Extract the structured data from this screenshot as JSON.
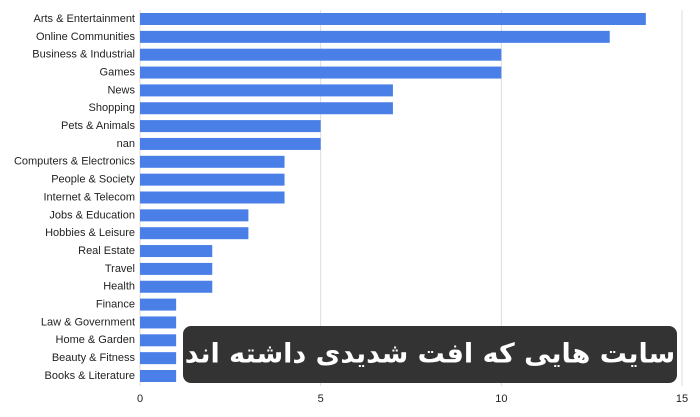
{
  "chart_data": {
    "type": "bar",
    "orientation": "horizontal",
    "categories": [
      "Arts & Entertainment",
      "Online Communities",
      "Business & Industrial",
      "Games",
      "News",
      "Shopping",
      "Pets & Animals",
      "nan",
      "Computers & Electronics",
      "People & Society",
      "Internet & Telecom",
      "Jobs & Education",
      "Hobbies & Leisure",
      "Real Estate",
      "Travel",
      "Health",
      "Finance",
      "Law & Government",
      "Home & Garden",
      "Beauty & Fitness",
      "Books & Literature"
    ],
    "values": [
      14,
      13,
      10,
      10,
      7,
      7,
      5,
      5,
      4,
      4,
      4,
      3,
      3,
      2,
      2,
      2,
      1,
      1,
      1,
      1,
      1
    ],
    "color": "#4a7fe8",
    "xlim": [
      0,
      15
    ],
    "xticks": [
      0,
      5,
      10,
      15
    ],
    "grid": true,
    "annotation": "سایت هایی که افت شدیدی داشته اند"
  }
}
